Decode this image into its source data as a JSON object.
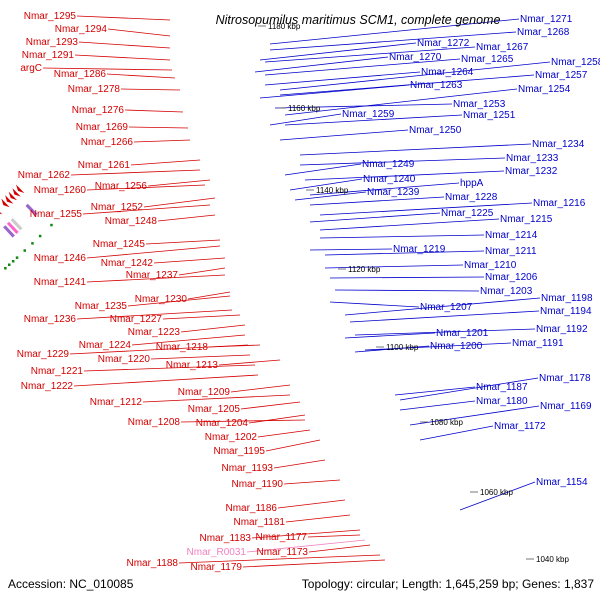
{
  "title": "Nitrosopumilus maritimus SCM1, complete genome",
  "accession": "Accession: NC_010085",
  "topology": "Topology: circular; Length: 1,645,259 bp; Genes: 1,837",
  "colors": {
    "reverse": "#d40000",
    "forward": "#0000cc",
    "rna": "#f080c0",
    "backbone": "#8c8c8c"
  },
  "scale_marks": [
    {
      "label": "1180 kbp"
    },
    {
      "label": "1160 kbp"
    },
    {
      "label": "1140 kbp"
    },
    {
      "label": "1120 kbp"
    },
    {
      "label": "1100 kbp"
    },
    {
      "label": "1080 kbp"
    },
    {
      "label": "1060 kbp"
    },
    {
      "label": "1040 kbp"
    }
  ],
  "left_labels": [
    "Nmar_1295",
    "Nmar_1294",
    "Nmar_1293",
    "Nmar_1291",
    "argC",
    "Nmar_1286",
    "Nmar_1278",
    "Nmar_1276",
    "Nmar_1269",
    "Nmar_1266",
    "Nmar_1262",
    "Nmar_1261",
    "Nmar_1260",
    "Nmar_1256",
    "Nmar_1255",
    "Nmar_1252",
    "Nmar_1248",
    "Nmar_1245",
    "Nmar_1246",
    "Nmar_1242",
    "Nmar_1237",
    "Nmar_1241",
    "Nmar_1230",
    "Nmar_1235",
    "Nmar_1236",
    "Nmar_1227",
    "Nmar_1223",
    "Nmar_1224",
    "Nmar_1229",
    "Nmar_1220",
    "Nmar_1218",
    "Nmar_1221",
    "Nmar_1222",
    "Nmar_1213",
    "Nmar_1209",
    "Nmar_1212",
    "Nmar_1205",
    "Nmar_1204",
    "Nmar_1208",
    "Nmar_1202",
    "Nmar_1195",
    "Nmar_1193",
    "Nmar_1190",
    "Nmar_1186",
    "Nmar_1181",
    "Nmar_1183",
    "Nmar_1177",
    "Nmar_R0031",
    "Nmar_1173",
    "Nmar_1188",
    "Nmar_1179"
  ],
  "right_labels": [
    "Nmar_1271",
    "Nmar_1268",
    "Nmar_1272",
    "Nmar_1267",
    "Nmar_1270",
    "Nmar_1265",
    "Nmar_1258",
    "Nmar_1264",
    "Nmar_1257",
    "Nmar_1263",
    "Nmar_1254",
    "Nmar_1253",
    "Nmar_1259",
    "Nmar_1251",
    "Nmar_1250",
    "Nmar_1234",
    "Nmar_1233",
    "Nmar_1249",
    "Nmar_1232",
    "Nmar_1240",
    "hppA",
    "Nmar_1239",
    "Nmar_1228",
    "Nmar_1216",
    "Nmar_1225",
    "Nmar_1215",
    "Nmar_1214",
    "Nmar_1219",
    "Nmar_1211",
    "Nmar_1210",
    "Nmar_1206",
    "Nmar_1203",
    "Nmar_1207",
    "Nmar_1198",
    "Nmar_1194",
    "Nmar_1192",
    "Nmar_1201",
    "Nmar_1191",
    "Nmar_1200",
    "Nmar_1187",
    "Nmar_1178",
    "Nmar_1180",
    "Nmar_1169",
    "Nmar_1172",
    "Nmar_1154"
  ]
}
